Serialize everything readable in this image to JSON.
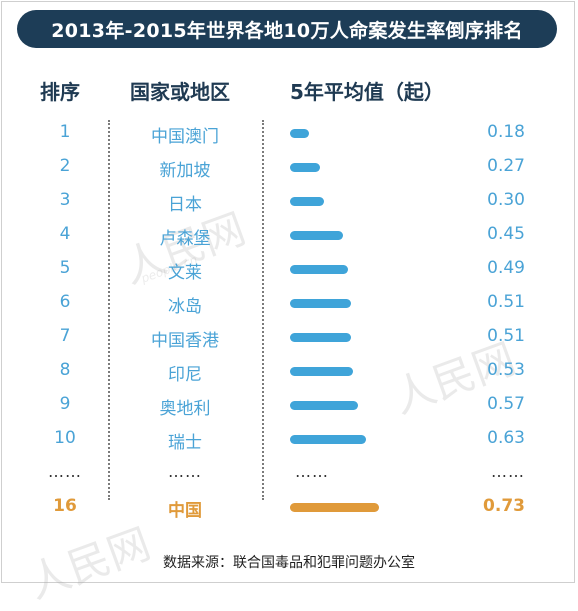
{
  "title": "2013年-2015年世界各地10万人命案发生率倒序排名",
  "headers": {
    "rank": "排序",
    "region": "国家或地区",
    "value": "5年平均值（起）"
  },
  "colors": {
    "title_bg": "#1d3d57",
    "bar": "#3fa4d9",
    "text": "#4aa3d6",
    "highlight": "#e09a3a"
  },
  "chart_data": {
    "type": "bar",
    "orientation": "horizontal",
    "title": "2013年-2015年世界各地10万人命案发生率倒序排名",
    "categories": [
      "中国澳门",
      "新加坡",
      "日本",
      "卢森堡",
      "文莱",
      "冰岛",
      "中国香港",
      "印尼",
      "奥地利",
      "瑞士",
      "中国"
    ],
    "ranks": [
      "1",
      "2",
      "3",
      "4",
      "5",
      "6",
      "7",
      "8",
      "9",
      "10",
      "16"
    ],
    "values": [
      0.18,
      0.27,
      0.3,
      0.45,
      0.49,
      0.51,
      0.51,
      0.53,
      0.57,
      0.63,
      0.73
    ],
    "value_labels": [
      "0.18",
      "0.27",
      "0.30",
      "0.45",
      "0.49",
      "0.51",
      "0.51",
      "0.53",
      "0.57",
      "0.63",
      "0.73"
    ],
    "highlight_index": 10,
    "ellipsis": "……",
    "grid": false
  },
  "watermark": "人民网",
  "watermark_sub": "people.cn",
  "source": "数据来源：联合国毒品和犯罪问题办公室"
}
